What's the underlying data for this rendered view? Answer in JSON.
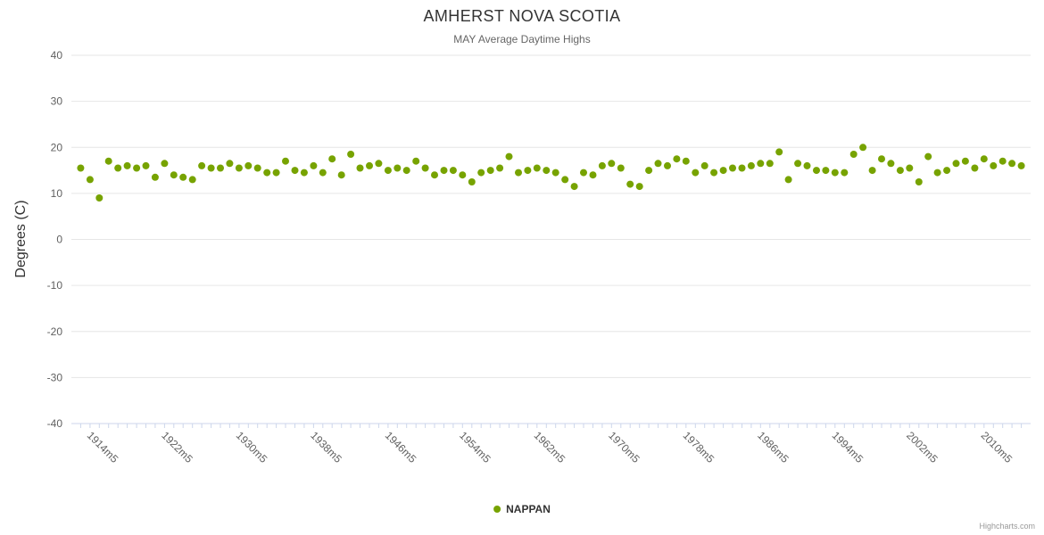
{
  "credit": "Highcharts.com",
  "colors": {
    "series_green": "#77a300",
    "grid": "#e6e6e6",
    "axis_text": "#606060",
    "axis_line": "#ccd6eb",
    "title_text": "#333333",
    "subtitle_text": "#666666",
    "credit_text": "#999999"
  },
  "chart_data": {
    "type": "scatter",
    "title": "AMHERST NOVA SCOTIA",
    "subtitle": "MAY Average Daytime Highs",
    "xlabel": "",
    "ylabel": "Degrees (C)",
    "ylim": [
      -40,
      40
    ],
    "xlim": [
      1912,
      2015
    ],
    "y_ticks": [
      40,
      30,
      20,
      10,
      0,
      -10,
      -20,
      -30,
      -40
    ],
    "x_tick_labels": [
      "1914m5",
      "1922m5",
      "1930m5",
      "1938m5",
      "1946m5",
      "1954m5",
      "1962m5",
      "1970m5",
      "1978m5",
      "1986m5",
      "1994m5",
      "2002m5",
      "2010m5"
    ],
    "grid": "horizontal",
    "legend_position": "bottom",
    "series": [
      {
        "name": "NAPPAN",
        "color": "#77a300",
        "marker_radius": 4,
        "x": [
          1913,
          1914,
          1915,
          1916,
          1917,
          1918,
          1919,
          1920,
          1921,
          1922,
          1923,
          1924,
          1925,
          1926,
          1927,
          1928,
          1929,
          1930,
          1931,
          1932,
          1933,
          1934,
          1935,
          1936,
          1937,
          1938,
          1939,
          1940,
          1941,
          1942,
          1943,
          1944,
          1945,
          1946,
          1947,
          1948,
          1949,
          1950,
          1951,
          1952,
          1953,
          1954,
          1955,
          1956,
          1957,
          1958,
          1959,
          1960,
          1961,
          1962,
          1963,
          1964,
          1965,
          1966,
          1967,
          1968,
          1969,
          1970,
          1971,
          1972,
          1973,
          1974,
          1975,
          1976,
          1977,
          1978,
          1979,
          1980,
          1981,
          1982,
          1983,
          1984,
          1985,
          1986,
          1987,
          1988,
          1989,
          1990,
          1991,
          1992,
          1993,
          1994,
          1995,
          1996,
          1997,
          1998,
          1999,
          2000,
          2001,
          2002,
          2003,
          2004,
          2005,
          2006,
          2007,
          2008,
          2009,
          2010,
          2011,
          2012,
          2013,
          2014
        ],
        "y": [
          15.5,
          13,
          9,
          17,
          15.5,
          16,
          15.5,
          16,
          13.5,
          16.5,
          14,
          13.5,
          13,
          16,
          15.5,
          15.5,
          16.5,
          15.5,
          16,
          15.5,
          14.5,
          14.5,
          17,
          15,
          14.5,
          16,
          14.5,
          17.5,
          14,
          18.5,
          15.5,
          16,
          16.5,
          15,
          15.5,
          15,
          17,
          15.5,
          14,
          15,
          15,
          14,
          12.5,
          14.5,
          15,
          15.5,
          18,
          14.5,
          15,
          15.5,
          15,
          14.5,
          13,
          11.5,
          14.5,
          14,
          16,
          16.5,
          15.5,
          12,
          11.5,
          15,
          16.5,
          16,
          17.5,
          17,
          14.5,
          16,
          14.5,
          15,
          15.5,
          15.5,
          16,
          16.5,
          16.5,
          19,
          13,
          16.5,
          16,
          15,
          15,
          14.5,
          14.5,
          18.5,
          20,
          15,
          17.5,
          16.5,
          15,
          15.5,
          12.5,
          18,
          14.5,
          15,
          16.5,
          17,
          15.5,
          17.5,
          16,
          17,
          16.5,
          16
        ]
      }
    ]
  }
}
